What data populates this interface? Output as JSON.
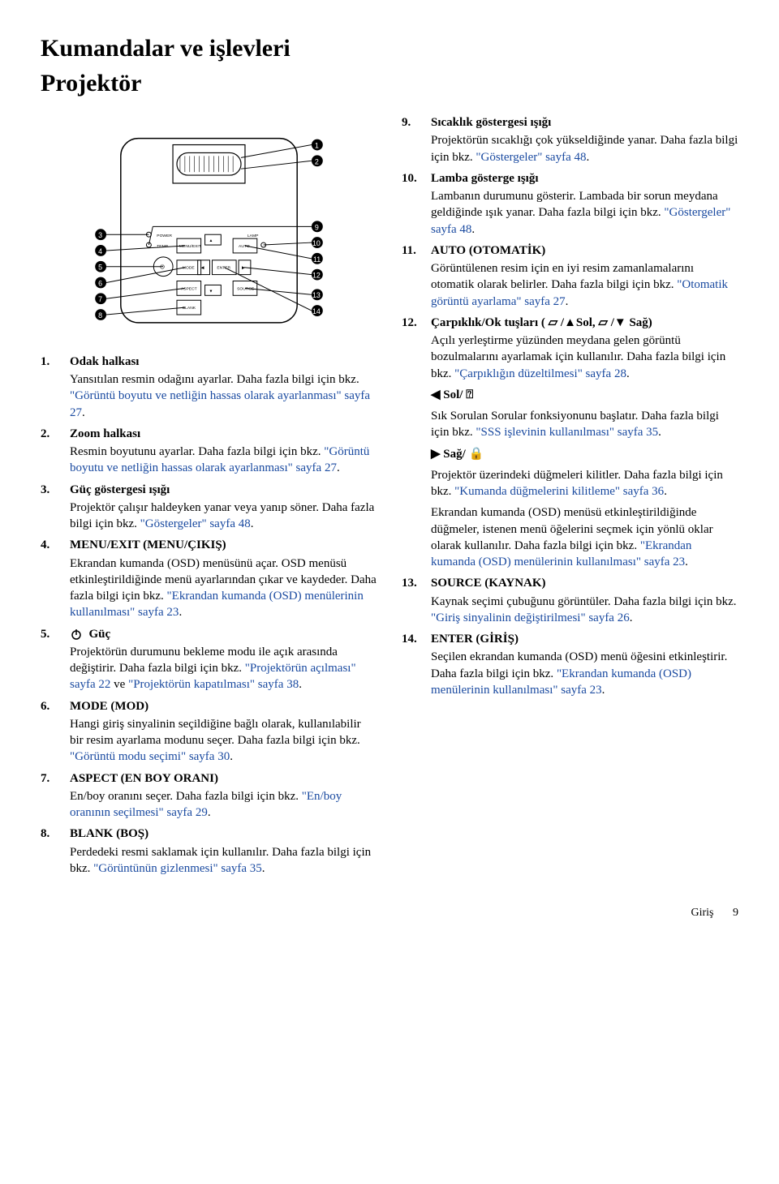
{
  "title": "Kumandalar ve işlevleri",
  "subtitle": "Projektör",
  "left": {
    "items": [
      {
        "num": "1.",
        "label": "Odak halkası",
        "desc_pre": "Yansıtılan resmin odağını ayarlar. Daha fazla bilgi için bkz. ",
        "link": "\"Görüntü boyutu ve netliğin hassas olarak ayarlanması\" sayfa 27",
        "desc_post": "."
      },
      {
        "num": "2.",
        "label": "Zoom halkası",
        "desc_pre": "Resmin boyutunu ayarlar. Daha fazla bilgi için bkz. ",
        "link": "\"Görüntü boyutu ve netliğin hassas olarak ayarlanması\" sayfa 27",
        "desc_post": "."
      },
      {
        "num": "3.",
        "label": "Güç göstergesi ışığı",
        "desc_pre": "Projektör çalışır haldeyken yanar veya yanıp söner. Daha fazla bilgi için bkz. ",
        "link": "\"Göstergeler\" sayfa 48",
        "desc_post": "."
      },
      {
        "num": "4.",
        "label": "MENU/EXIT (MENU/ÇIKIŞ)",
        "desc_pre": "Ekrandan kumanda (OSD) menüsünü açar. OSD menüsü etkinleştirildiğinde menü ayarlarından çıkar ve kaydeder. Daha fazla bilgi için bkz. ",
        "link": "\"Ekrandan kumanda (OSD) menülerinin kullanılması\" sayfa 23",
        "desc_post": "."
      },
      {
        "num": "5.",
        "label": "Güç",
        "icon": "power",
        "desc_pre": "Projektörün durumunu bekleme modu ile açık arasında değiştirir. Daha fazla bilgi için bkz. ",
        "link": "\"Projektörün açılması\" sayfa 22",
        "desc_mid": " ve ",
        "link2": "\"Projektörün kapatılması\" sayfa 38",
        "desc_post": "."
      },
      {
        "num": "6.",
        "label": "MODE (MOD)",
        "desc_pre": "Hangi giriş sinyalinin seçildiğine bağlı olarak, kullanılabilir bir resim ayarlama modunu seçer. Daha fazla bilgi için bkz. ",
        "link": "\"Görüntü modu seçimi\" sayfa 30",
        "desc_post": "."
      },
      {
        "num": "7.",
        "label": "ASPECT (EN BOY ORANI)",
        "desc_pre": "En/boy oranını seçer. Daha fazla bilgi için bkz. ",
        "link": "\"En/boy oranının seçilmesi\" sayfa 29",
        "desc_post": "."
      },
      {
        "num": "8.",
        "label": "BLANK (BOŞ)",
        "desc_pre": "Perdedeki resmi saklamak için kullanılır. Daha fazla bilgi için bkz. ",
        "link": "\"Görüntünün gizlenmesi\" sayfa 35",
        "desc_post": "."
      }
    ]
  },
  "right": {
    "items": [
      {
        "num": "9.",
        "label": "Sıcaklık göstergesi ışığı",
        "desc_pre": "Projektörün sıcaklığı çok yükseldiğinde yanar. Daha fazla bilgi için bkz. ",
        "link": "\"Göstergeler\" sayfa 48",
        "desc_post": "."
      },
      {
        "num": "10.",
        "label": "Lamba gösterge ışığı",
        "desc_pre": "Lambanın durumunu gösterir. Lambada bir sorun meydana geldiğinde ışık yanar. Daha fazla bilgi için bkz. ",
        "link": "\"Göstergeler\" sayfa 48",
        "desc_post": "."
      },
      {
        "num": "11.",
        "label": "AUTO (OTOMATİK)",
        "desc_pre": "Görüntülenen resim için en iyi resim zamanlamalarını otomatik olarak belirler. Daha fazla bilgi için bkz. ",
        "link": "\"Otomatik görüntü ayarlama\" sayfa 27",
        "desc_post": "."
      },
      {
        "num": "12.",
        "label_html": true,
        "label": "Çarpıklık/Ok tuşları ( ▱ /▲Sol, ▱ /▼ Sağ)",
        "desc_pre": "Açılı yerleştirme yüzünden meydana gelen görüntü bozulmalarını ayarlamak için kullanılır. Daha fazla bilgi için bkz. ",
        "link": "\"Çarpıklığın düzeltilmesi\" sayfa 28",
        "desc_post": ".",
        "sub": [
          {
            "title": "◀ Sol/ ⍰",
            "pre": "Sık Sorulan Sorular fonksiyonunu başlatır. Daha fazla bilgi için bkz. ",
            "link": "\"SSS işlevinin kullanılması\" sayfa 35",
            "post": "."
          },
          {
            "title": "▶ Sağ/ 🔒",
            "pre": "Projektör üzerindeki düğmeleri kilitler. Daha fazla bilgi için bkz. ",
            "link": "\"Kumanda düğmelerini kilitleme\" sayfa 36",
            "post": "."
          }
        ],
        "extra_pre": "Ekrandan kumanda (OSD) menüsü etkinleştirildiğinde düğmeler, istenen menü öğelerini seçmek için yönlü oklar olarak kullanılır. Daha fazla bilgi için bkz. ",
        "extra_link": "\"Ekrandan kumanda (OSD) menülerinin kullanılması\" sayfa 23",
        "extra_post": "."
      },
      {
        "num": "13.",
        "label": "SOURCE (KAYNAK)",
        "desc_pre": "Kaynak seçimi çubuğunu görüntüler. Daha fazla bilgi için bkz. ",
        "link": "\"Giriş sinyalinin değiştirilmesi\" sayfa 26",
        "desc_post": "."
      },
      {
        "num": "14.",
        "label": "ENTER (GİRİŞ)",
        "desc_pre": "Seçilen ekrandan kumanda (OSD) menü öğesini etkinleştirir. Daha fazla bilgi için bkz. ",
        "link": "\"Ekrandan kumanda (OSD) menülerinin kullanılması\" sayfa 23",
        "desc_post": "."
      }
    ]
  },
  "diagram": {
    "callouts_left": [
      "3",
      "4",
      "5",
      "6",
      "7",
      "8"
    ],
    "callouts_top": [
      "1",
      "2"
    ],
    "callouts_right": [
      "9",
      "10",
      "11",
      "12",
      "13",
      "14"
    ],
    "button_labels": {
      "power": "POWER",
      "temp": "TEMP",
      "lamp": "LAMP",
      "menuexit": "MENU/EXIT",
      "auto": "AUTO",
      "mode": "MODE",
      "enter": "ENTER",
      "aspect": "ASPECT",
      "blank": "BLANK",
      "source": "SOURCE"
    }
  },
  "footer": {
    "section": "Giriş",
    "page": "9"
  }
}
